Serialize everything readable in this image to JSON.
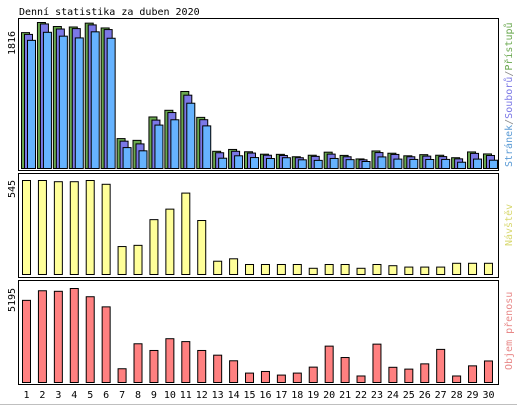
{
  "title": "Denní statistika za duben 2020",
  "panels": {
    "top": {
      "max_label": "1816",
      "legend": [
        {
          "text": "Stránek",
          "color": "#5b9bd5"
        },
        {
          "text": "/",
          "color": "#888888"
        },
        {
          "text": "Souborů",
          "color": "#7b78e6"
        },
        {
          "text": "/",
          "color": "#888888"
        },
        {
          "text": "Přístupů",
          "color": "#6aa84f"
        }
      ]
    },
    "mid": {
      "max_label": "545",
      "legend_text": "Návštěv",
      "legend_color": "#d8d870"
    },
    "bot": {
      "max_label": "5195",
      "legend_text": "Objem přenosu",
      "legend_color": "#e88888"
    }
  },
  "colors": {
    "hits": "#6aa84f",
    "files": "#7b78e6",
    "pages": "#66b3ff",
    "visits": "#ffff99",
    "kbytes": "#ff8080",
    "weekend_label": "#66aa00",
    "label": "#000000"
  },
  "chart_data": [
    {
      "type": "bar",
      "title": "Denní statistika za duben 2020",
      "categories": [
        "1",
        "2",
        "3",
        "4",
        "5",
        "6",
        "7",
        "8",
        "9",
        "10",
        "11",
        "12",
        "13",
        "14",
        "15",
        "16",
        "17",
        "18",
        "19",
        "20",
        "21",
        "22",
        "23",
        "24",
        "25",
        "26",
        "27",
        "28",
        "29",
        "30"
      ],
      "weekend_days": [
        "4",
        "5",
        "11",
        "12",
        "18",
        "19",
        "25",
        "26"
      ],
      "series": [
        {
          "name": "Přístupů",
          "values": [
            1690,
            1816,
            1766,
            1760,
            1808,
            1748,
            372,
            350,
            641,
            724,
            958,
            636,
            214,
            237,
            208,
            178,
            176,
            146,
            165,
            203,
            163,
            119,
            218,
            190,
            158,
            172,
            165,
            134,
            206,
            181
          ]
        },
        {
          "name": "Souborů",
          "values": [
            1668,
            1798,
            1735,
            1740,
            1786,
            1728,
            340,
            306,
            602,
            696,
            912,
            607,
            196,
            214,
            192,
            165,
            162,
            134,
            151,
            179,
            146,
            108,
            198,
            175,
            146,
            154,
            148,
            120,
            188,
            162
          ]
        },
        {
          "name": "Stránek",
          "values": [
            1594,
            1694,
            1646,
            1624,
            1700,
            1620,
            260,
            220,
            540,
            606,
            812,
            530,
            128,
            158,
            136,
            124,
            134,
            108,
            101,
            125,
            110,
            87,
            144,
            117,
            113,
            112,
            113,
            78,
            117,
            103
          ]
        }
      ],
      "ymax_label": "1816"
    },
    {
      "type": "bar",
      "categories": [
        "1",
        "2",
        "3",
        "4",
        "5",
        "6",
        "7",
        "8",
        "9",
        "10",
        "11",
        "12",
        "13",
        "14",
        "15",
        "16",
        "17",
        "18",
        "19",
        "20",
        "21",
        "22",
        "23",
        "24",
        "25",
        "26",
        "27",
        "28",
        "29",
        "30"
      ],
      "series": [
        {
          "name": "Návštěv",
          "values": [
            545,
            545,
            538,
            538,
            545,
            523,
            162,
            169,
            318,
            379,
            472,
            313,
            77,
            91,
            58,
            58,
            58,
            58,
            36,
            58,
            58,
            36,
            58,
            51,
            43,
            43,
            43,
            65,
            65,
            65
          ]
        }
      ],
      "ymax_label": "545"
    },
    {
      "type": "bar",
      "categories": [
        "1",
        "2",
        "3",
        "4",
        "5",
        "6",
        "7",
        "8",
        "9",
        "10",
        "11",
        "12",
        "13",
        "14",
        "15",
        "16",
        "17",
        "18",
        "19",
        "20",
        "21",
        "22",
        "23",
        "24",
        "25",
        "26",
        "27",
        "28",
        "29",
        "30"
      ],
      "series": [
        {
          "name": "Objem přenosu",
          "values": [
            4540,
            5070,
            5040,
            5195,
            4740,
            4180,
            760,
            2140,
            1770,
            2420,
            2260,
            1770,
            1510,
            1200,
            520,
            610,
            410,
            520,
            850,
            2010,
            1380,
            360,
            2120,
            840,
            740,
            1030,
            1830,
            360,
            920,
            1190
          ]
        }
      ],
      "ymax_label": "5195"
    }
  ]
}
